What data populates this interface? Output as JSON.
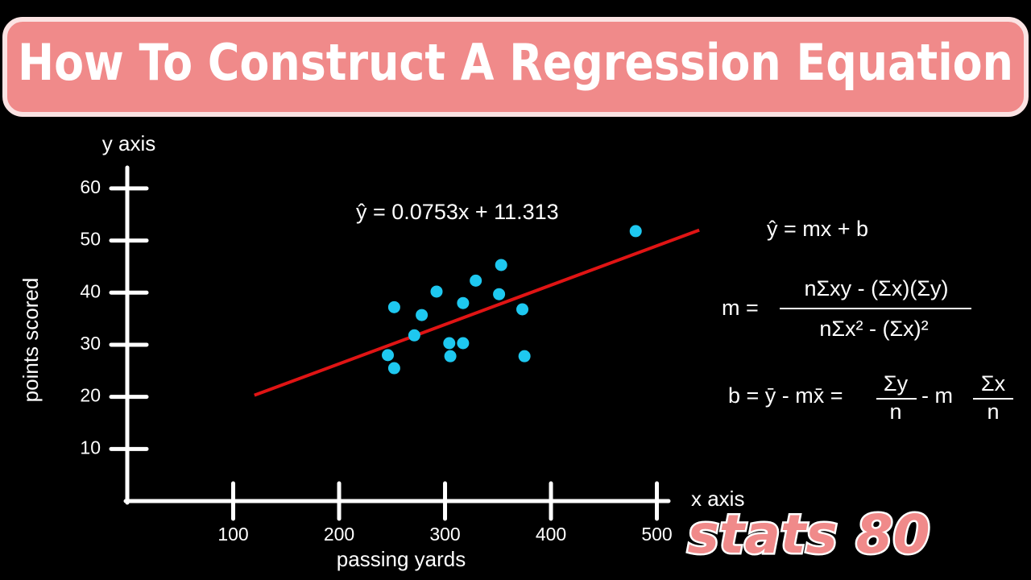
{
  "chart_data": {
    "type": "scatter",
    "title": "How To Construct A Regression Equation",
    "y_axis_name": "y axis",
    "x_axis_name": "x axis",
    "y_label": "points scored",
    "x_label": "passing yards",
    "x": [
      252,
      278,
      292,
      329,
      353,
      351,
      317,
      271,
      246,
      252,
      304,
      305,
      317,
      373,
      375,
      480
    ],
    "y": [
      37.2,
      35.7,
      40.2,
      42.3,
      45.3,
      39.7,
      38.0,
      31.8,
      28.0,
      25.5,
      30.3,
      27.8,
      30.3,
      36.8,
      27.8,
      51.8
    ],
    "color": "#1ec8f0",
    "xlim": [
      0,
      511
    ],
    "ylim": [
      0,
      64
    ],
    "xticks": [
      100,
      200,
      300,
      400,
      500
    ],
    "yticks": [
      10,
      20,
      30,
      40,
      50,
      60
    ],
    "regression": {
      "equation": "ŷ = 0.0753x + 11.313",
      "color": "#e01414",
      "x": [
        120,
        540
      ],
      "y": [
        20.3,
        52.0
      ]
    },
    "formulas": {
      "model": "ŷ = mx + b",
      "slope_lhs": "m =",
      "slope_numerator": "nΣxy - (Σx)(Σy)",
      "slope_denominator": "nΣx² - (Σx)²",
      "intercept_lhs": "b = ȳ - mx̄ =",
      "intercept_num1": "Σy",
      "intercept_den1": "n",
      "intercept_mid": "- m",
      "intercept_num2": "Σx",
      "intercept_den2": "n"
    },
    "badge": "stats 80"
  }
}
